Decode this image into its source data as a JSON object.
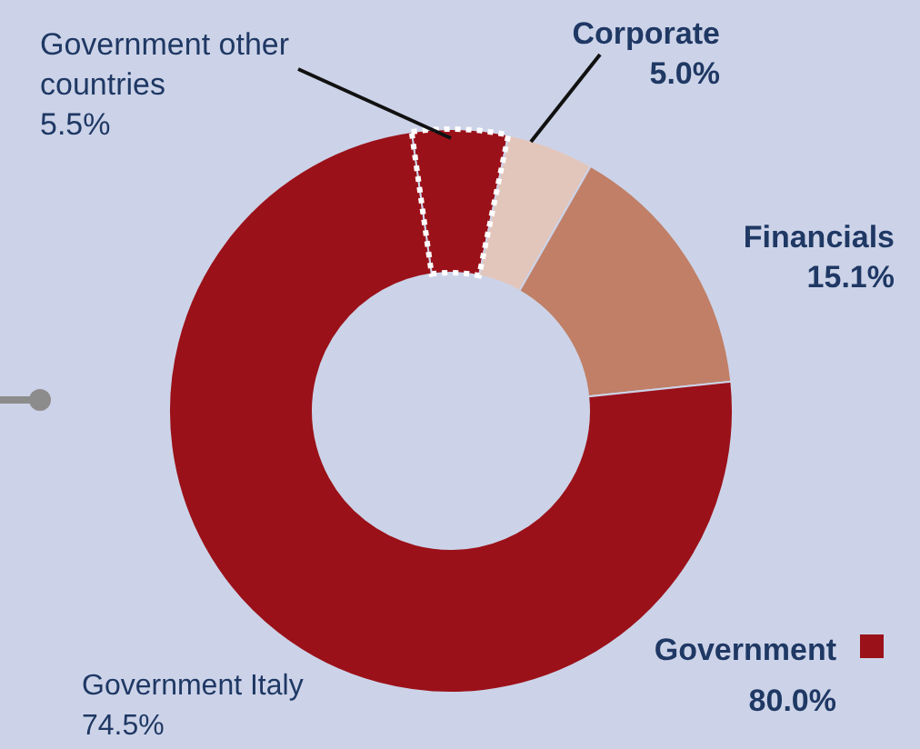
{
  "chart_data": {
    "type": "donut",
    "categories": [
      "Government other countries",
      "Corporate",
      "Financials",
      "Government Italy"
    ],
    "values": [
      5.5,
      5.0,
      15.1,
      74.5
    ],
    "colors": [
      "#9b1119",
      "#e3c6bb",
      "#c07f66",
      "#9b1119"
    ],
    "value_labels": [
      "5.5%",
      "5.0%",
      "15.1%",
      "74.5%"
    ],
    "annotations": [
      "Government",
      "80.0%"
    ]
  }
}
